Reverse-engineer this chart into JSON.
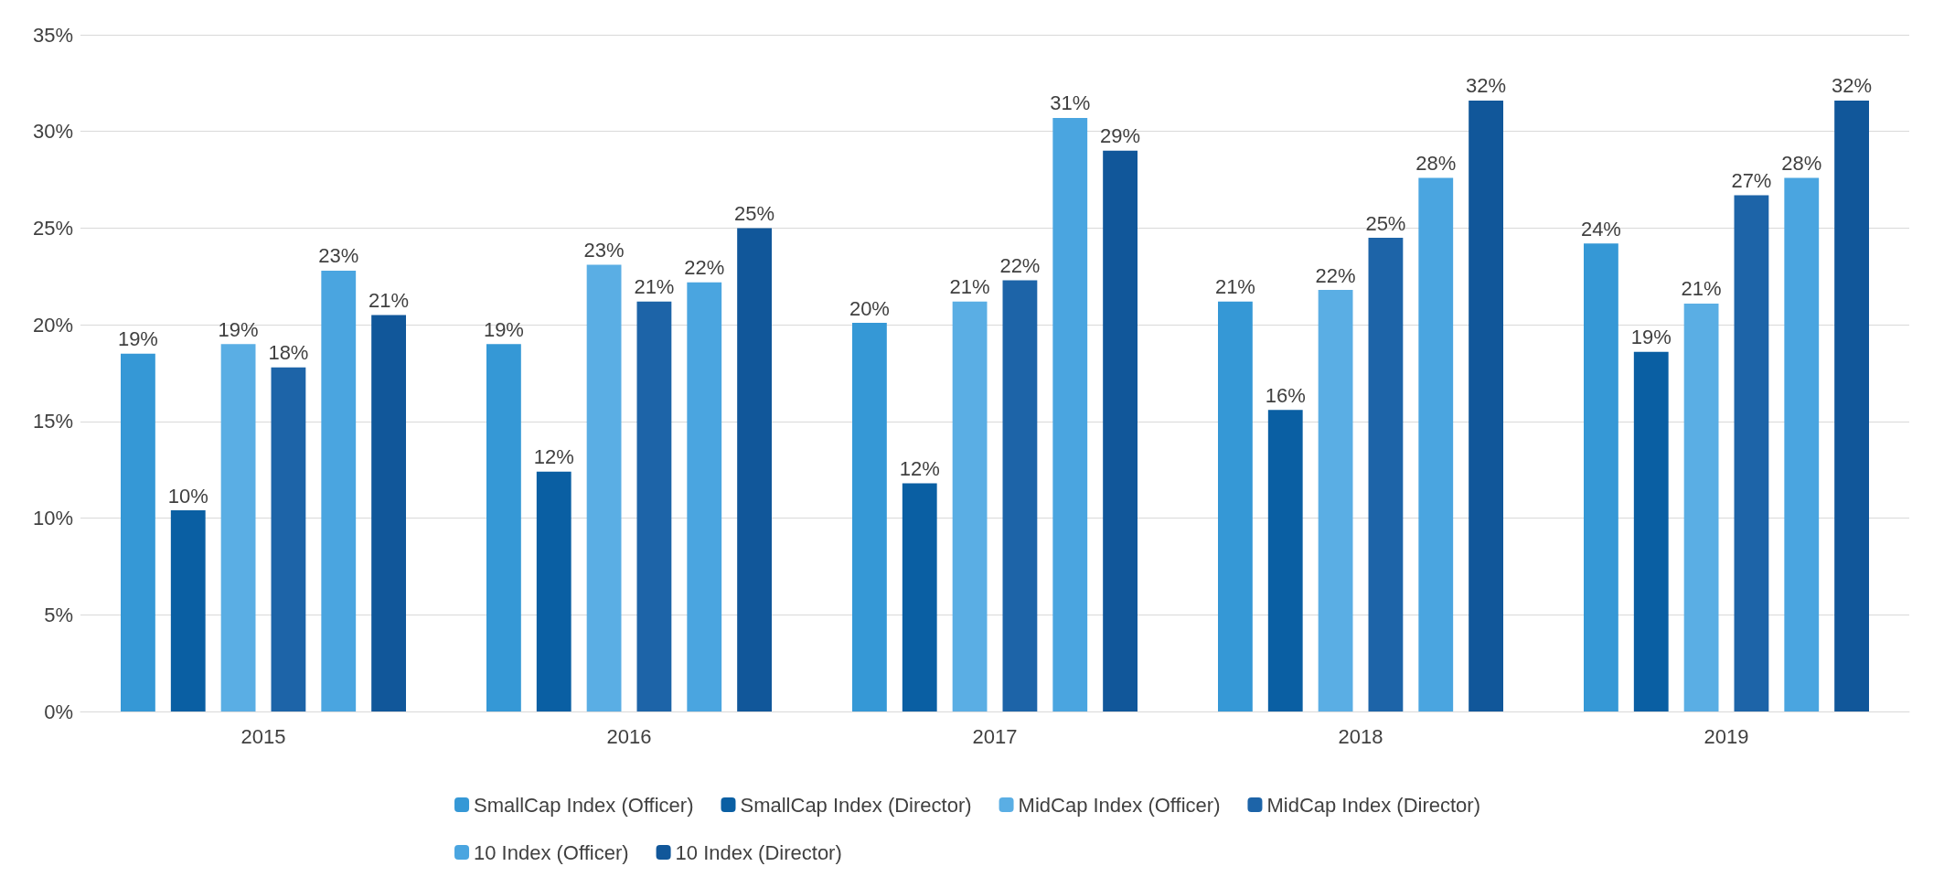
{
  "chart_data": {
    "type": "bar",
    "categories": [
      "2015",
      "2016",
      "2017",
      "2018",
      "2019"
    ],
    "series": [
      {
        "name": "SmallCap Index (Officer)",
        "color": "#3598d6",
        "values": [
          18.5,
          19.0,
          20.1,
          21.2,
          24.2
        ],
        "value_labels": [
          "19%",
          "19%",
          "20%",
          "21%",
          "24%"
        ]
      },
      {
        "name": "SmallCap Index (Director)",
        "color": "#0a5fa3",
        "values": [
          10.4,
          12.4,
          11.8,
          15.6,
          18.6
        ],
        "value_labels": [
          "10%",
          "12%",
          "12%",
          "16%",
          "19%"
        ]
      },
      {
        "name": "MidCap Index (Officer)",
        "color": "#5aaee4",
        "values": [
          19.0,
          23.1,
          21.2,
          21.8,
          21.1
        ],
        "value_labels": [
          "19%",
          "23%",
          "21%",
          "22%",
          "21%"
        ]
      },
      {
        "name": "MidCap Index (Director)",
        "color": "#1d64a8",
        "values": [
          17.8,
          21.2,
          22.3,
          24.5,
          26.7
        ],
        "value_labels": [
          "18%",
          "21%",
          "22%",
          "25%",
          "27%"
        ]
      },
      {
        "name": "10 Index (Officer)",
        "color": "#4aa5e0",
        "values": [
          22.8,
          22.2,
          30.7,
          27.6,
          27.6
        ],
        "value_labels": [
          "23%",
          "22%",
          "31%",
          "28%",
          "28%"
        ]
      },
      {
        "name": "10 Index (Director)",
        "color": "#11579a",
        "values": [
          20.5,
          25.0,
          29.0,
          31.6,
          31.6
        ],
        "value_labels": [
          "21%",
          "25%",
          "29%",
          "32%",
          "32%"
        ]
      }
    ],
    "ylim": [
      0,
      35
    ],
    "yticks": [
      {
        "value": 0,
        "label": "0%"
      },
      {
        "value": 5,
        "label": "5%"
      },
      {
        "value": 10,
        "label": "10%"
      },
      {
        "value": 15,
        "label": "15%"
      },
      {
        "value": 20,
        "label": "20%"
      },
      {
        "value": 25,
        "label": "25%"
      },
      {
        "value": 30,
        "label": "30%"
      },
      {
        "value": 35,
        "label": "35%"
      }
    ],
    "grid": "y",
    "legend": "bottom"
  }
}
